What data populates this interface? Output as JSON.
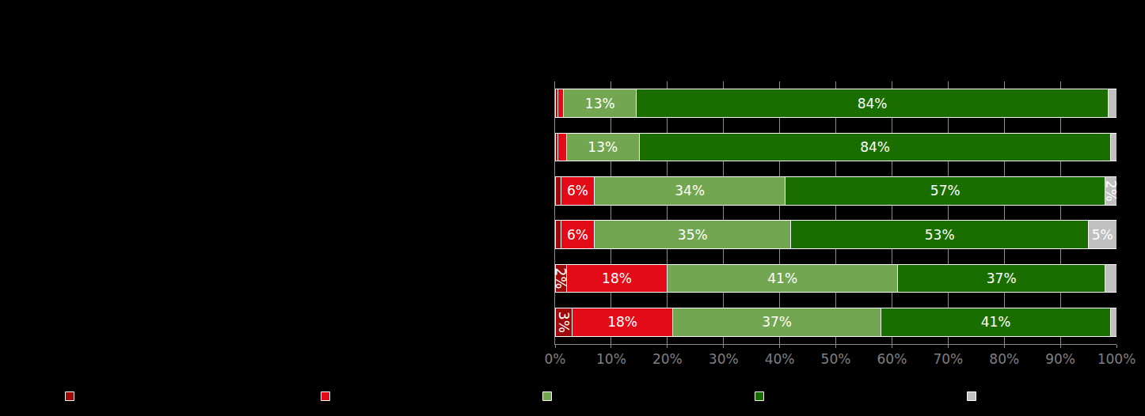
{
  "chart_data": {
    "type": "bar",
    "orientation": "horizontal",
    "stacked": true,
    "data_labels": true,
    "grid": true,
    "tick_labels": "x",
    "categories": [
      null,
      null,
      null,
      null,
      null,
      null
    ],
    "xlim": [
      0,
      100
    ],
    "xticks": [
      {
        "value": 0,
        "label": "0%"
      },
      {
        "value": 10,
        "label": "10%"
      },
      {
        "value": 20,
        "label": "20%"
      },
      {
        "value": 30,
        "label": "30%"
      },
      {
        "value": 40,
        "label": "40%"
      },
      {
        "value": 50,
        "label": "50%"
      },
      {
        "value": 60,
        "label": "60%"
      },
      {
        "value": 70,
        "label": "70%"
      },
      {
        "value": 80,
        "label": "80%"
      },
      {
        "value": 90,
        "label": "90%"
      },
      {
        "value": 100,
        "label": "100%"
      }
    ],
    "series": [
      {
        "color": "#9e0a0a",
        "values": [
          0.5,
          0.5,
          1,
          1,
          2,
          3
        ],
        "value_labels": [
          null,
          null,
          null,
          null,
          "2%",
          "3%"
        ]
      },
      {
        "color": "#e30b17",
        "values": [
          1,
          1.5,
          6,
          6,
          18,
          18
        ],
        "value_labels": [
          null,
          null,
          "6%",
          "6%",
          "18%",
          "18%"
        ]
      },
      {
        "color": "#72a650",
        "values": [
          13,
          13,
          34,
          35,
          41,
          37
        ],
        "value_labels": [
          "13%",
          "13%",
          "34%",
          "35%",
          "41%",
          "37%"
        ]
      },
      {
        "color": "#1a6e00",
        "values": [
          84,
          84,
          57,
          53,
          37,
          41
        ],
        "value_labels": [
          "84%",
          "84%",
          "57%",
          "53%",
          "37%",
          "41%"
        ]
      },
      {
        "color": "#c0c0c0",
        "values": [
          1.5,
          1,
          2,
          5,
          2,
          1
        ],
        "value_labels": [
          null,
          null,
          "2%",
          "5%",
          null,
          null
        ]
      }
    ]
  }
}
